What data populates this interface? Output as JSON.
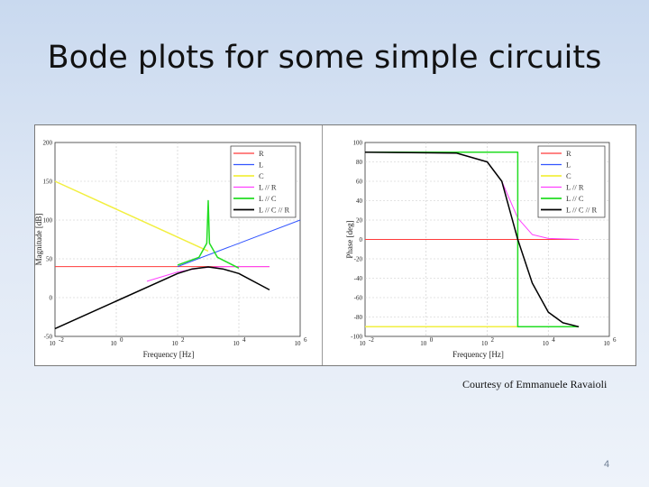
{
  "slide": {
    "title": "Bode plots for some simple circuits",
    "credit": "Courtesy of Emmanuele Ravaioli",
    "page_number": "4"
  },
  "chart_data": [
    {
      "type": "line",
      "xscale": "log",
      "xlim": [
        0.01,
        1000000
      ],
      "ylim": [
        -50,
        200
      ],
      "xticks": [
        "10^-2",
        "10^0",
        "10^2",
        "10^4",
        "10^6"
      ],
      "yticks": [
        -50,
        0,
        50,
        100,
        150,
        200
      ],
      "xlabel": "Frequency [Hz]",
      "ylabel": "Magnitude [dB]",
      "grid": true,
      "legend": "top-right",
      "series": [
        {
          "name": "R",
          "color": "#ff3b3b",
          "width": 1.0,
          "x": [
            0.01,
            100000
          ],
          "y": [
            40,
            40
          ]
        },
        {
          "name": "L",
          "color": "#3355ff",
          "width": 1.0,
          "x": [
            100,
            1000000
          ],
          "y": [
            40,
            100
          ]
        },
        {
          "name": "C",
          "color": "#f2ef40",
          "width": 1.5,
          "x": [
            0.01,
            1000
          ],
          "y": [
            150,
            60
          ]
        },
        {
          "name": "L // R",
          "color": "#ff40ff",
          "width": 1.0,
          "x": [
            10,
            100,
            500,
            1000,
            2000,
            5000,
            10000,
            100000
          ],
          "y": [
            21,
            33,
            38,
            39,
            39.6,
            40,
            40,
            40
          ]
        },
        {
          "name": "L // C",
          "color": "#22dd22",
          "width": 1.5,
          "x": [
            100,
            500,
            900,
            1000,
            1100,
            2000,
            10000
          ],
          "y": [
            42,
            52,
            70,
            125,
            70,
            52,
            38
          ]
        },
        {
          "name": "L // C // R",
          "color": "#000000",
          "width": 1.5,
          "x": [
            0.01,
            100,
            300,
            1000,
            3000,
            10000,
            100000
          ],
          "y": [
            -40,
            31,
            37,
            39.5,
            37,
            31,
            10
          ]
        }
      ]
    },
    {
      "type": "line",
      "xscale": "log",
      "xlim": [
        0.01,
        1000000
      ],
      "ylim": [
        -100,
        100
      ],
      "xticks": [
        "10^-2",
        "10^0",
        "10^2",
        "10^4",
        "10^6"
      ],
      "yticks": [
        -100,
        -80,
        -60,
        -40,
        -20,
        0,
        20,
        40,
        60,
        80,
        100
      ],
      "xlabel": "Frequency [Hz]",
      "ylabel": "Phase [deg]",
      "grid": true,
      "legend": "top-right",
      "series": [
        {
          "name": "R",
          "color": "#ff3b3b",
          "width": 1.0,
          "x": [
            0.01,
            100000
          ],
          "y": [
            0,
            0
          ]
        },
        {
          "name": "L",
          "color": "#3355ff",
          "width": 1.0,
          "x": [
            0.01,
            1000
          ],
          "y": [
            90,
            90
          ]
        },
        {
          "name": "C",
          "color": "#f2ef40",
          "width": 1.5,
          "x": [
            0.01,
            100000
          ],
          "y": [
            -90,
            -90
          ]
        },
        {
          "name": "L // R",
          "color": "#ff40ff",
          "width": 1.0,
          "x": [
            0.01,
            10,
            100,
            300,
            1000,
            3000,
            10000,
            100000
          ],
          "y": [
            90,
            89,
            80,
            60,
            22,
            5,
            1,
            0
          ]
        },
        {
          "name": "L // C",
          "color": "#22dd22",
          "width": 1.5,
          "x": [
            0.01,
            1000,
            1000,
            100000
          ],
          "y": [
            90,
            90,
            -90,
            -90
          ]
        },
        {
          "name": "L // C // R",
          "color": "#000000",
          "width": 1.5,
          "x": [
            0.01,
            10,
            100,
            300,
            1000,
            3000,
            10000,
            30000,
            100000
          ],
          "y": [
            90,
            89,
            80,
            60,
            0,
            -45,
            -75,
            -86,
            -90
          ]
        }
      ]
    }
  ]
}
